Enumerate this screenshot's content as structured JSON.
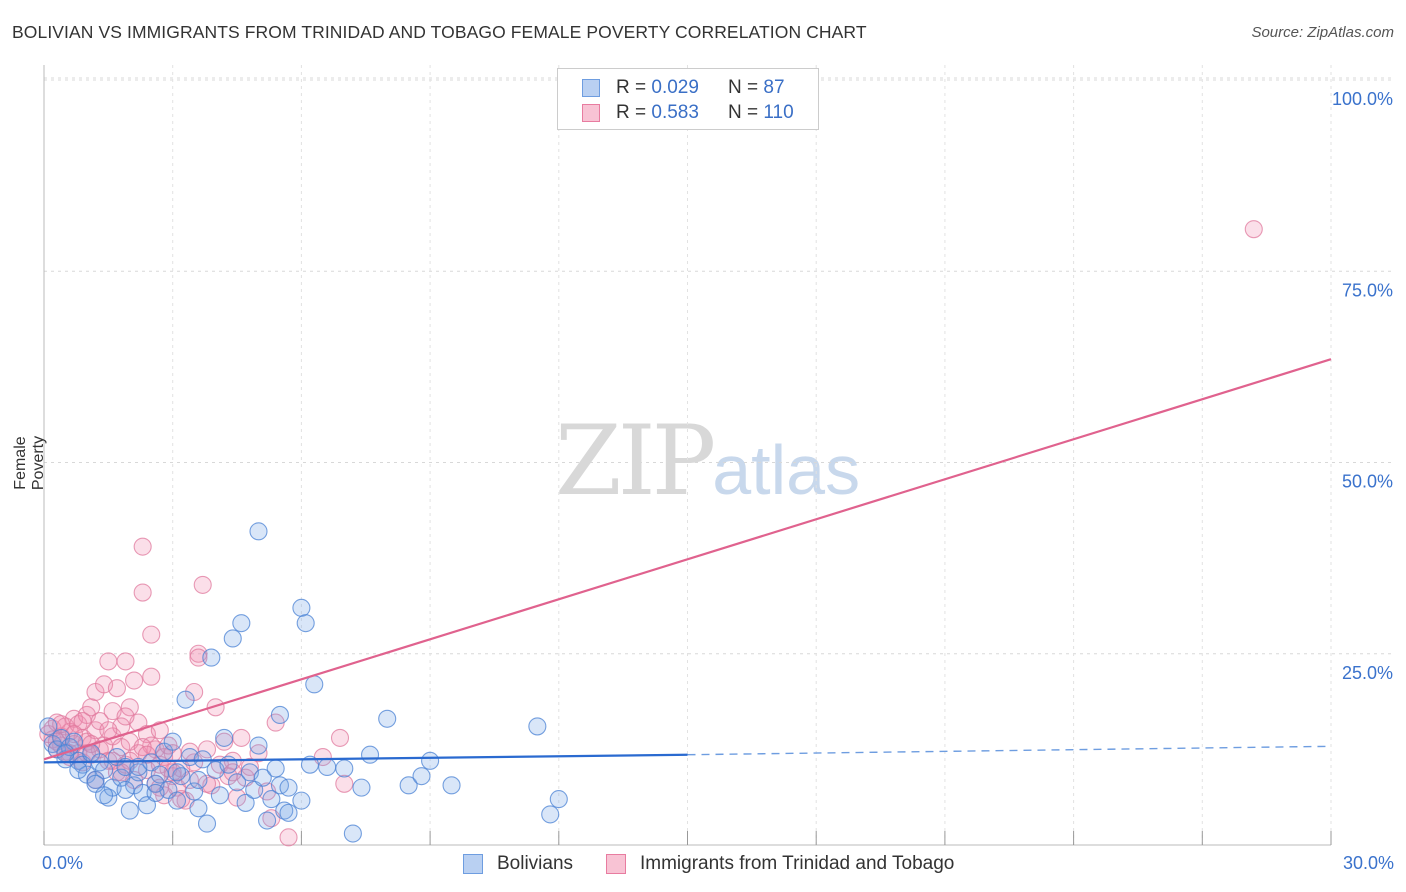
{
  "title": "BOLIVIAN VS IMMIGRANTS FROM TRINIDAD AND TOBAGO FEMALE POVERTY CORRELATION CHART",
  "source": "Source: ZipAtlas.com",
  "watermark": {
    "zip": "ZIP",
    "atlas": "atlas"
  },
  "legend": {
    "series": [
      {
        "r_label": "R = ",
        "r_value": "0.029",
        "n_label": "N = ",
        "n_value": "87",
        "color": "#6e9de0",
        "fill": "#b9d0f2"
      },
      {
        "r_label": "R = ",
        "r_value": "0.583",
        "n_label": "N = ",
        "n_value": "110",
        "color": "#e87ca0",
        "fill": "#f8c3d4"
      }
    ]
  },
  "bottom_legend": [
    "Bolivians",
    "Immigrants from Trinidad and Tobago"
  ],
  "chart_data": {
    "type": "scatter",
    "title": "BOLIVIAN VS IMMIGRANTS FROM TRINIDAD AND TOBAGO FEMALE POVERTY CORRELATION CHART",
    "xlabel": "",
    "ylabel": "Female Poverty",
    "xlim": [
      0,
      30
    ],
    "ylim": [
      0,
      105
    ],
    "x_tick_labels": [
      "0.0%",
      "30.0%"
    ],
    "y_ticks": [
      25,
      50,
      75,
      100
    ],
    "y_tick_labels": [
      "25.0%",
      "50.0%",
      "75.0%",
      "100.0%"
    ],
    "grid": true,
    "series": [
      {
        "name": "Bolivians",
        "color": "#3a72cc",
        "trend": {
          "x0": 0,
          "y0": 10.8,
          "x1": 15,
          "y1": 11.8,
          "x_dash_end": 30,
          "y_dash_end": 12.9
        },
        "points": [
          [
            0.1,
            15.5
          ],
          [
            0.2,
            13.2
          ],
          [
            0.3,
            12.5
          ],
          [
            0.4,
            14.0
          ],
          [
            0.5,
            11.2
          ],
          [
            0.6,
            12.8
          ],
          [
            0.7,
            13.5
          ],
          [
            0.8,
            11.0
          ],
          [
            0.9,
            10.5
          ],
          [
            1.0,
            9.2
          ],
          [
            1.1,
            12.0
          ],
          [
            1.2,
            8.5
          ],
          [
            1.3,
            10.8
          ],
          [
            1.4,
            9.8
          ],
          [
            1.5,
            6.2
          ],
          [
            1.6,
            7.5
          ],
          [
            1.7,
            11.5
          ],
          [
            1.8,
            8.8
          ],
          [
            1.9,
            10.2
          ],
          [
            2.0,
            4.5
          ],
          [
            2.1,
            7.8
          ],
          [
            2.2,
            9.5
          ],
          [
            2.3,
            6.8
          ],
          [
            2.4,
            5.2
          ],
          [
            2.5,
            10.8
          ],
          [
            2.6,
            8.0
          ],
          [
            2.7,
            9.2
          ],
          [
            2.8,
            12.2
          ],
          [
            2.9,
            7.2
          ],
          [
            3.0,
            13.5
          ],
          [
            3.1,
            5.8
          ],
          [
            3.2,
            9.0
          ],
          [
            3.3,
            19.0
          ],
          [
            3.4,
            11.5
          ],
          [
            3.5,
            7.0
          ],
          [
            3.6,
            4.8
          ],
          [
            3.7,
            11.2
          ],
          [
            3.8,
            2.8
          ],
          [
            3.9,
            24.5
          ],
          [
            4.0,
            9.8
          ],
          [
            4.1,
            6.5
          ],
          [
            4.2,
            14.0
          ],
          [
            4.3,
            10.5
          ],
          [
            4.4,
            27.0
          ],
          [
            4.5,
            8.2
          ],
          [
            4.6,
            29.0
          ],
          [
            4.7,
            5.5
          ],
          [
            4.8,
            9.5
          ],
          [
            4.9,
            7.2
          ],
          [
            5.0,
            13.0
          ],
          [
            5.1,
            8.8
          ],
          [
            5.2,
            3.2
          ],
          [
            5.3,
            6.0
          ],
          [
            5.4,
            10.0
          ],
          [
            5.5,
            7.8
          ],
          [
            5.6,
            4.5
          ],
          [
            5.0,
            41.0
          ],
          [
            5.5,
            17.0
          ],
          [
            5.7,
            4.2
          ],
          [
            5.7,
            7.5
          ],
          [
            6.0,
            31.0
          ],
          [
            6.1,
            29.0
          ],
          [
            6.2,
            10.5
          ],
          [
            6.3,
            21.0
          ],
          [
            6.0,
            5.8
          ],
          [
            6.6,
            10.2
          ],
          [
            7.0,
            10.0
          ],
          [
            7.2,
            1.5
          ],
          [
            7.4,
            7.5
          ],
          [
            7.6,
            11.8
          ],
          [
            8.0,
            16.5
          ],
          [
            8.5,
            7.8
          ],
          [
            8.8,
            9.0
          ],
          [
            9.0,
            11.0
          ],
          [
            9.5,
            7.8
          ],
          [
            11.5,
            15.5
          ],
          [
            11.8,
            4.0
          ],
          [
            12.0,
            6.0
          ],
          [
            1.2,
            8.0
          ],
          [
            2.2,
            10.2
          ],
          [
            0.5,
            12.0
          ],
          [
            1.4,
            6.5
          ],
          [
            2.6,
            6.8
          ],
          [
            3.1,
            9.5
          ],
          [
            0.8,
            9.8
          ],
          [
            1.9,
            7.2
          ],
          [
            3.6,
            8.5
          ]
        ]
      },
      {
        "name": "Immigrants from Trinidad and Tobago",
        "color": "#e0608c",
        "trend": {
          "x0": 0,
          "y0": 11.2,
          "x1": 30,
          "y1": 63.5
        },
        "points": [
          [
            0.1,
            14.5
          ],
          [
            0.2,
            13.8
          ],
          [
            0.2,
            15.2
          ],
          [
            0.3,
            12.5
          ],
          [
            0.3,
            16.0
          ],
          [
            0.4,
            14.2
          ],
          [
            0.4,
            13.0
          ],
          [
            0.5,
            15.5
          ],
          [
            0.5,
            12.2
          ],
          [
            0.6,
            14.8
          ],
          [
            0.6,
            11.5
          ],
          [
            0.7,
            16.5
          ],
          [
            0.7,
            13.2
          ],
          [
            0.8,
            15.8
          ],
          [
            0.8,
            12.0
          ],
          [
            0.9,
            14.0
          ],
          [
            0.9,
            10.8
          ],
          [
            1.0,
            17.0
          ],
          [
            1.0,
            13.5
          ],
          [
            1.1,
            18.0
          ],
          [
            1.1,
            11.8
          ],
          [
            1.2,
            15.0
          ],
          [
            1.2,
            20.0
          ],
          [
            1.3,
            12.5
          ],
          [
            1.3,
            16.2
          ],
          [
            1.4,
            21.0
          ],
          [
            1.4,
            13.0
          ],
          [
            1.5,
            24.0
          ],
          [
            1.5,
            11.0
          ],
          [
            1.6,
            17.5
          ],
          [
            1.6,
            14.2
          ],
          [
            1.7,
            9.5
          ],
          [
            1.7,
            20.5
          ],
          [
            1.8,
            12.8
          ],
          [
            1.8,
            15.5
          ],
          [
            1.9,
            24.0
          ],
          [
            1.9,
            10.5
          ],
          [
            2.0,
            18.0
          ],
          [
            2.0,
            13.5
          ],
          [
            2.1,
            21.5
          ],
          [
            2.1,
            8.5
          ],
          [
            2.2,
            16.0
          ],
          [
            2.2,
            12.0
          ],
          [
            2.3,
            39.0
          ],
          [
            2.3,
            33.0
          ],
          [
            2.4,
            14.5
          ],
          [
            2.4,
            9.8
          ],
          [
            2.5,
            27.5
          ],
          [
            2.5,
            22.0
          ],
          [
            2.6,
            12.5
          ],
          [
            2.6,
            8.0
          ],
          [
            2.7,
            15.0
          ],
          [
            2.7,
            10.5
          ],
          [
            2.8,
            6.5
          ],
          [
            2.8,
            11.5
          ],
          [
            2.9,
            13.0
          ],
          [
            3.0,
            9.0
          ],
          [
            3.0,
            12.0
          ],
          [
            3.1,
            7.5
          ],
          [
            3.2,
            10.0
          ],
          [
            3.3,
            5.8
          ],
          [
            3.4,
            8.5
          ],
          [
            3.5,
            20.0
          ],
          [
            3.6,
            25.0
          ],
          [
            3.6,
            24.5
          ],
          [
            3.7,
            34.0
          ],
          [
            3.8,
            12.5
          ],
          [
            3.9,
            7.8
          ],
          [
            4.0,
            18.0
          ],
          [
            4.1,
            10.5
          ],
          [
            4.2,
            13.5
          ],
          [
            4.3,
            9.0
          ],
          [
            4.4,
            11.0
          ],
          [
            4.5,
            6.2
          ],
          [
            4.6,
            14.0
          ],
          [
            4.7,
            8.8
          ],
          [
            4.8,
            10.2
          ],
          [
            5.0,
            12.0
          ],
          [
            5.2,
            7.0
          ],
          [
            5.4,
            16.0
          ],
          [
            5.3,
            3.5
          ],
          [
            5.7,
            1.0
          ],
          [
            6.5,
            11.5
          ],
          [
            6.9,
            14.0
          ],
          [
            7.0,
            8.0
          ],
          [
            28.2,
            80.5
          ],
          [
            0.3,
            13.5
          ],
          [
            0.6,
            12.0
          ],
          [
            1.0,
            12.0
          ],
          [
            1.5,
            15.0
          ],
          [
            2.0,
            11.0
          ],
          [
            2.5,
            13.0
          ],
          [
            3.0,
            9.5
          ],
          [
            3.5,
            10.8
          ],
          [
            1.2,
            8.5
          ],
          [
            1.8,
            9.5
          ],
          [
            0.4,
            15.8
          ],
          [
            0.9,
            16.2
          ],
          [
            2.3,
            12.8
          ],
          [
            2.7,
            7.5
          ],
          [
            3.2,
            6.0
          ],
          [
            3.8,
            8.0
          ],
          [
            4.4,
            9.5
          ],
          [
            1.6,
            11.0
          ],
          [
            2.9,
            10.0
          ],
          [
            0.7,
            14.5
          ],
          [
            1.1,
            13.2
          ],
          [
            1.9,
            16.8
          ],
          [
            2.4,
            11.8
          ],
          [
            3.4,
            12.2
          ]
        ]
      }
    ]
  }
}
